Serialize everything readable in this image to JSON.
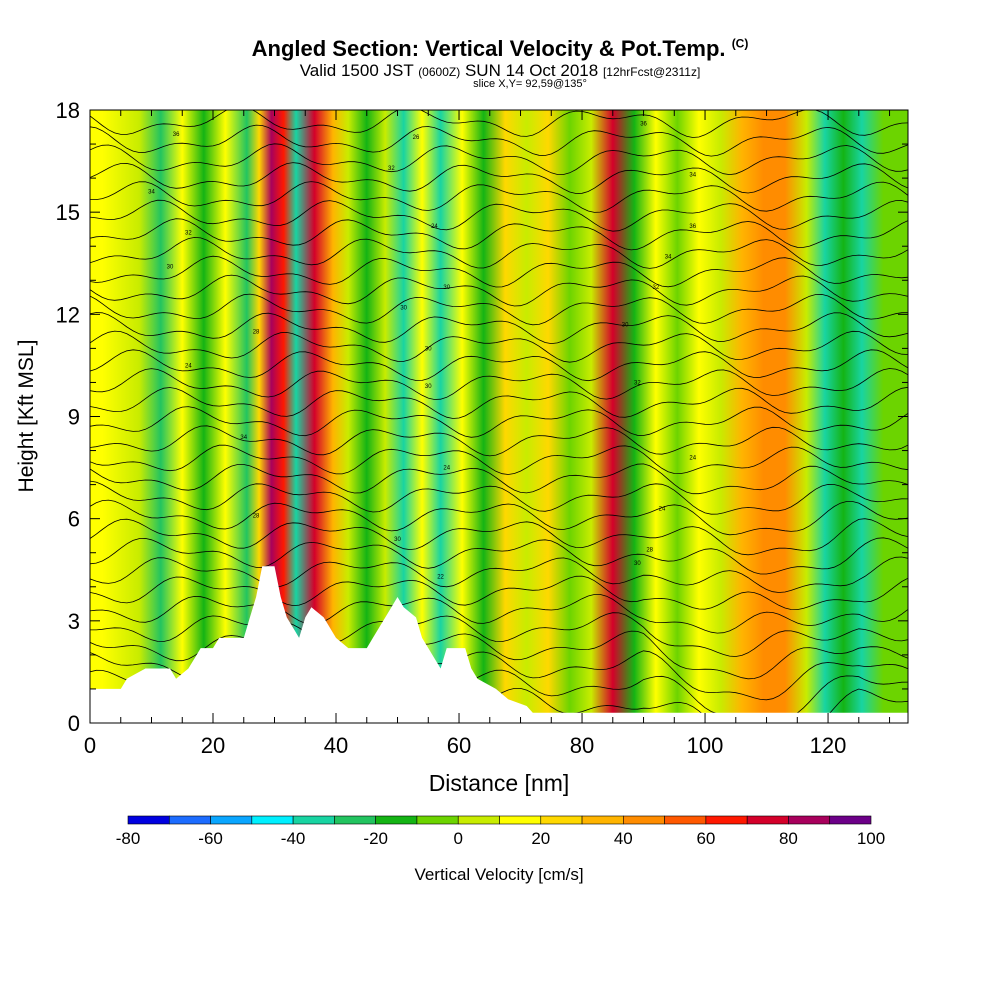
{
  "title": {
    "main": "Angled Section: Vertical Velocity & Pot.Temp.",
    "main_unit": "(C)",
    "valid_prefix": "Valid 1500 JST",
    "valid_utc": "(0600Z)",
    "valid_date": "SUN 14 Oct 2018",
    "forecast": "[12hrFcst@2311z]",
    "slice": "slice X,Y= 92,59@135°"
  },
  "chart_data": {
    "type": "heatmap",
    "xlabel": "Distance [nm]",
    "ylabel": "Height [Kft MSL]",
    "x_ticks": [
      "0",
      "20",
      "40",
      "60",
      "80",
      "100",
      "120"
    ],
    "y_ticks": [
      "0",
      "3",
      "6",
      "9",
      "12",
      "15",
      "18"
    ],
    "xlim": [
      0,
      133
    ],
    "ylim": [
      0,
      18
    ],
    "colorbar": {
      "label": "Vertical Velocity [cm/s]",
      "tick_labels": [
        "-80",
        "-60",
        "-40",
        "-20",
        "0",
        "20",
        "40",
        "60",
        "80",
        "100"
      ],
      "range": [
        -80,
        100
      ],
      "step": 10,
      "colors": [
        "#0000e0",
        "#1c6cff",
        "#0aa6ff",
        "#00f0ff",
        "#18d4a2",
        "#22c460",
        "#14b414",
        "#6cd400",
        "#c8ec00",
        "#ffff00",
        "#ffd800",
        "#ffb400",
        "#ff8c00",
        "#ff5800",
        "#ff1800",
        "#d4002a",
        "#a8005c",
        "#6c0088"
      ]
    },
    "velocity_columns": [
      {
        "x": 2,
        "v": 10
      },
      {
        "x": 8,
        "v": 0
      },
      {
        "x": 11.5,
        "v": -25
      },
      {
        "x": 15,
        "v": 15
      },
      {
        "x": 18.5,
        "v": -15
      },
      {
        "x": 22,
        "v": 15
      },
      {
        "x": 25.5,
        "v": -30
      },
      {
        "x": 27.5,
        "v": 20
      },
      {
        "x": 29.5,
        "v": 80
      },
      {
        "x": 31.5,
        "v": 60
      },
      {
        "x": 33.5,
        "v": -40
      },
      {
        "x": 36.5,
        "v": 75
      },
      {
        "x": 39.5,
        "v": 30
      },
      {
        "x": 42,
        "v": 5
      },
      {
        "x": 45,
        "v": -15
      },
      {
        "x": 48,
        "v": 0
      },
      {
        "x": 51,
        "v": -40
      },
      {
        "x": 54,
        "v": 15
      },
      {
        "x": 57,
        "v": -35
      },
      {
        "x": 60.5,
        "v": 10
      },
      {
        "x": 64,
        "v": -15
      },
      {
        "x": 67.5,
        "v": 20
      },
      {
        "x": 71,
        "v": 0
      },
      {
        "x": 74.5,
        "v": 20
      },
      {
        "x": 78,
        "v": -10
      },
      {
        "x": 81.5,
        "v": 0
      },
      {
        "x": 85,
        "v": 70
      },
      {
        "x": 88.5,
        "v": -15
      },
      {
        "x": 92,
        "v": 10
      },
      {
        "x": 95.5,
        "v": -5
      },
      {
        "x": 99,
        "v": 15
      },
      {
        "x": 102.5,
        "v": 0
      },
      {
        "x": 106,
        "v": 30
      },
      {
        "x": 109.5,
        "v": 45
      },
      {
        "x": 113,
        "v": 40
      },
      {
        "x": 116.5,
        "v": 5
      },
      {
        "x": 119.5,
        "v": -40
      },
      {
        "x": 122.5,
        "v": -15
      },
      {
        "x": 125.5,
        "v": -40
      },
      {
        "x": 129,
        "v": -10
      }
    ],
    "terrain": [
      {
        "x": 0,
        "h": 1.0
      },
      {
        "x": 5,
        "h": 1.0
      },
      {
        "x": 6,
        "h": 1.3
      },
      {
        "x": 9,
        "h": 1.6
      },
      {
        "x": 13,
        "h": 1.6
      },
      {
        "x": 14,
        "h": 1.3
      },
      {
        "x": 16,
        "h": 1.6
      },
      {
        "x": 17,
        "h": 1.9
      },
      {
        "x": 18,
        "h": 2.2
      },
      {
        "x": 20,
        "h": 2.2
      },
      {
        "x": 21,
        "h": 2.5
      },
      {
        "x": 25,
        "h": 2.5
      },
      {
        "x": 26,
        "h": 3.1
      },
      {
        "x": 27,
        "h": 3.7
      },
      {
        "x": 28,
        "h": 4.6
      },
      {
        "x": 30,
        "h": 4.6
      },
      {
        "x": 31,
        "h": 3.7
      },
      {
        "x": 32,
        "h": 3.1
      },
      {
        "x": 33,
        "h": 2.8
      },
      {
        "x": 34,
        "h": 2.5
      },
      {
        "x": 35,
        "h": 3.1
      },
      {
        "x": 36,
        "h": 3.4
      },
      {
        "x": 38,
        "h": 3.1
      },
      {
        "x": 40,
        "h": 2.5
      },
      {
        "x": 42,
        "h": 2.2
      },
      {
        "x": 45,
        "h": 2.2
      },
      {
        "x": 46,
        "h": 2.5
      },
      {
        "x": 47,
        "h": 2.8
      },
      {
        "x": 49,
        "h": 3.4
      },
      {
        "x": 50,
        "h": 3.7
      },
      {
        "x": 51,
        "h": 3.4
      },
      {
        "x": 53,
        "h": 3.1
      },
      {
        "x": 54,
        "h": 2.5
      },
      {
        "x": 55,
        "h": 2.2
      },
      {
        "x": 56,
        "h": 1.9
      },
      {
        "x": 57,
        "h": 1.6
      },
      {
        "x": 58,
        "h": 2.2
      },
      {
        "x": 61,
        "h": 2.2
      },
      {
        "x": 62,
        "h": 1.6
      },
      {
        "x": 63,
        "h": 1.3
      },
      {
        "x": 66,
        "h": 1.0
      },
      {
        "x": 68,
        "h": 0.7
      },
      {
        "x": 71,
        "h": 0.5
      },
      {
        "x": 72,
        "h": 0.3
      },
      {
        "x": 133,
        "h": 0.3
      }
    ],
    "isentrope_labels": [
      {
        "text": "36",
        "x": 14,
        "y": 17.3
      },
      {
        "text": "34",
        "x": 10,
        "y": 15.6
      },
      {
        "text": "32",
        "x": 16,
        "y": 14.4
      },
      {
        "text": "30",
        "x": 13,
        "y": 13.4
      },
      {
        "text": "28",
        "x": 27,
        "y": 11.5
      },
      {
        "text": "24",
        "x": 16,
        "y": 10.5
      },
      {
        "text": "34",
        "x": 25,
        "y": 8.4
      },
      {
        "text": "28",
        "x": 27,
        "y": 6.1
      },
      {
        "text": "26",
        "x": 53,
        "y": 17.2
      },
      {
        "text": "32",
        "x": 49,
        "y": 16.3
      },
      {
        "text": "24",
        "x": 56,
        "y": 14.6
      },
      {
        "text": "30",
        "x": 58,
        "y": 12.8
      },
      {
        "text": "30",
        "x": 51,
        "y": 12.2
      },
      {
        "text": "30",
        "x": 55,
        "y": 11.0
      },
      {
        "text": "30",
        "x": 55,
        "y": 9.9
      },
      {
        "text": "24",
        "x": 58,
        "y": 7.5
      },
      {
        "text": "30",
        "x": 50,
        "y": 5.4
      },
      {
        "text": "22",
        "x": 57,
        "y": 4.3
      },
      {
        "text": "36",
        "x": 90,
        "y": 17.6
      },
      {
        "text": "34",
        "x": 98,
        "y": 16.1
      },
      {
        "text": "36",
        "x": 98,
        "y": 14.6
      },
      {
        "text": "34",
        "x": 94,
        "y": 13.7
      },
      {
        "text": "32",
        "x": 92,
        "y": 12.8
      },
      {
        "text": "30",
        "x": 87,
        "y": 11.7
      },
      {
        "text": "32",
        "x": 89,
        "y": 10.0
      },
      {
        "text": "24",
        "x": 98,
        "y": 7.8
      },
      {
        "text": "24",
        "x": 93,
        "y": 6.3
      },
      {
        "text": "28",
        "x": 91,
        "y": 5.1
      },
      {
        "text": "30",
        "x": 89,
        "y": 4.7
      }
    ]
  }
}
